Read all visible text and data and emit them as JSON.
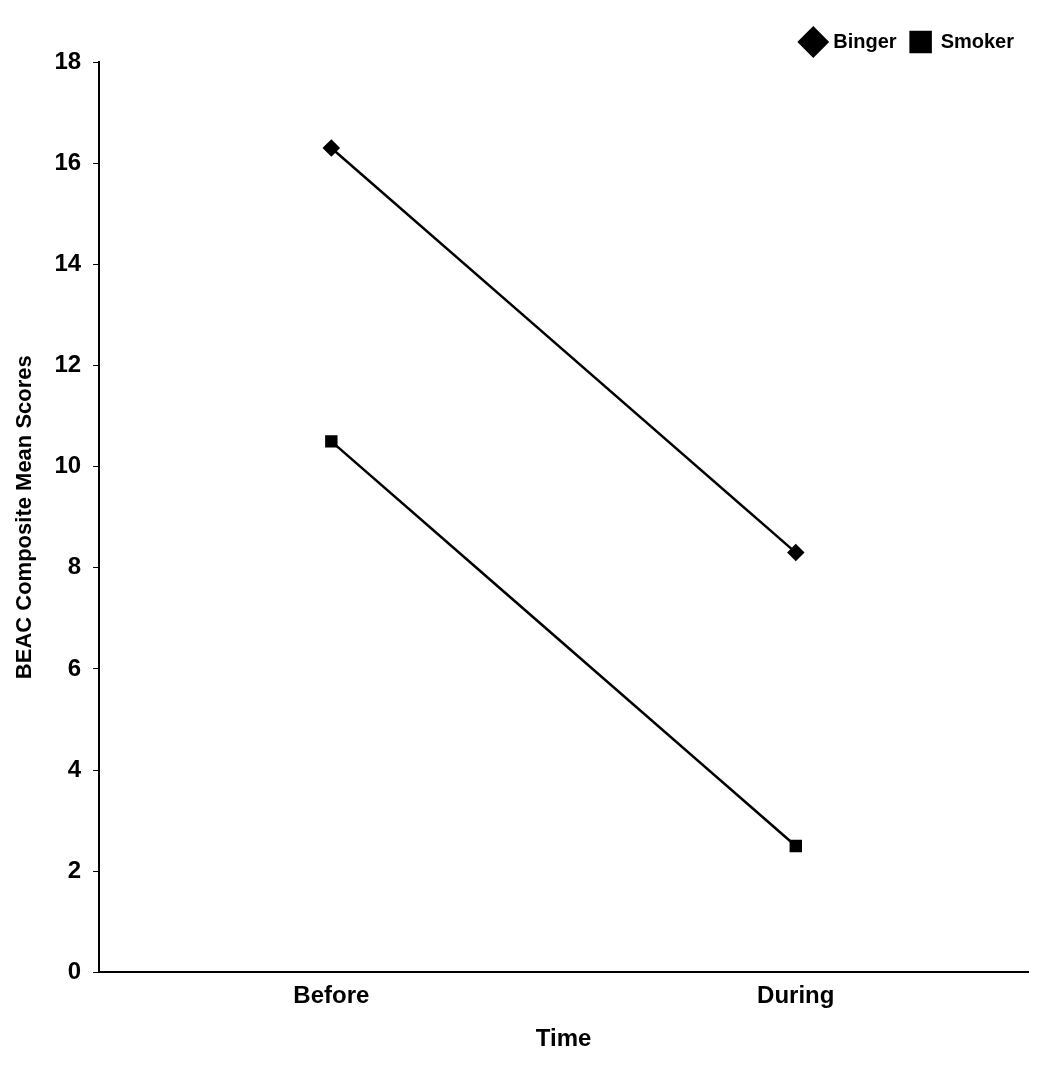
{
  "chart_data": {
    "type": "line",
    "xlabel": "Time",
    "ylabel": "BEAC Composite Mean Scores",
    "categories": [
      "Before",
      "During"
    ],
    "series": [
      {
        "name": "Binger",
        "color": "#000000",
        "marker": "diamond",
        "values": [
          16.3,
          8.3
        ]
      },
      {
        "name": "Smoker",
        "color": "#000000",
        "marker": "square",
        "values": [
          10.5,
          2.5
        ]
      }
    ],
    "ylim": [
      0,
      18
    ],
    "yticks": [
      0,
      2,
      4,
      6,
      8,
      10,
      12,
      14,
      16,
      18
    ],
    "legend": "top right",
    "line_style": "solid"
  }
}
